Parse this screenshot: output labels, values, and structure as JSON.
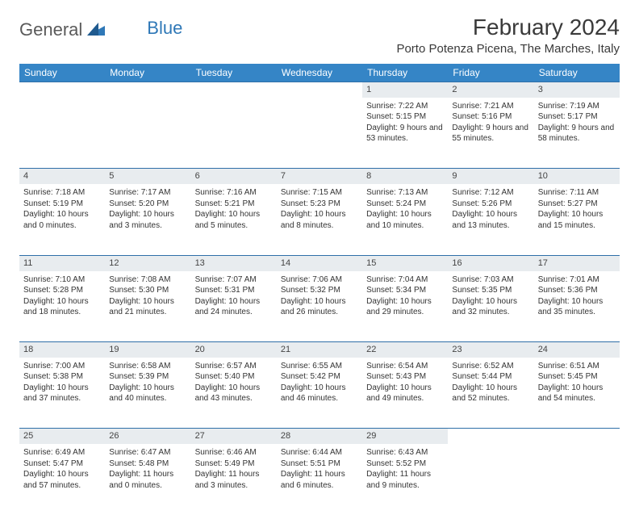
{
  "logo": {
    "text1": "General",
    "text2": "Blue"
  },
  "title": "February 2024",
  "location": "Porto Potenza Picena, The Marches, Italy",
  "day_headers": [
    "Sunday",
    "Monday",
    "Tuesday",
    "Wednesday",
    "Thursday",
    "Friday",
    "Saturday"
  ],
  "header_bg": "#3585c6",
  "header_fg": "#ffffff",
  "daynum_bg": "#e8ecef",
  "border_color": "#2f6fa8",
  "weeks": [
    {
      "days": [
        {
          "n": "",
          "sunrise": "",
          "sunset": "",
          "daylight": ""
        },
        {
          "n": "",
          "sunrise": "",
          "sunset": "",
          "daylight": ""
        },
        {
          "n": "",
          "sunrise": "",
          "sunset": "",
          "daylight": ""
        },
        {
          "n": "",
          "sunrise": "",
          "sunset": "",
          "daylight": ""
        },
        {
          "n": "1",
          "sunrise": "Sunrise: 7:22 AM",
          "sunset": "Sunset: 5:15 PM",
          "daylight": "Daylight: 9 hours and 53 minutes."
        },
        {
          "n": "2",
          "sunrise": "Sunrise: 7:21 AM",
          "sunset": "Sunset: 5:16 PM",
          "daylight": "Daylight: 9 hours and 55 minutes."
        },
        {
          "n": "3",
          "sunrise": "Sunrise: 7:19 AM",
          "sunset": "Sunset: 5:17 PM",
          "daylight": "Daylight: 9 hours and 58 minutes."
        }
      ]
    },
    {
      "days": [
        {
          "n": "4",
          "sunrise": "Sunrise: 7:18 AM",
          "sunset": "Sunset: 5:19 PM",
          "daylight": "Daylight: 10 hours and 0 minutes."
        },
        {
          "n": "5",
          "sunrise": "Sunrise: 7:17 AM",
          "sunset": "Sunset: 5:20 PM",
          "daylight": "Daylight: 10 hours and 3 minutes."
        },
        {
          "n": "6",
          "sunrise": "Sunrise: 7:16 AM",
          "sunset": "Sunset: 5:21 PM",
          "daylight": "Daylight: 10 hours and 5 minutes."
        },
        {
          "n": "7",
          "sunrise": "Sunrise: 7:15 AM",
          "sunset": "Sunset: 5:23 PM",
          "daylight": "Daylight: 10 hours and 8 minutes."
        },
        {
          "n": "8",
          "sunrise": "Sunrise: 7:13 AM",
          "sunset": "Sunset: 5:24 PM",
          "daylight": "Daylight: 10 hours and 10 minutes."
        },
        {
          "n": "9",
          "sunrise": "Sunrise: 7:12 AM",
          "sunset": "Sunset: 5:26 PM",
          "daylight": "Daylight: 10 hours and 13 minutes."
        },
        {
          "n": "10",
          "sunrise": "Sunrise: 7:11 AM",
          "sunset": "Sunset: 5:27 PM",
          "daylight": "Daylight: 10 hours and 15 minutes."
        }
      ]
    },
    {
      "days": [
        {
          "n": "11",
          "sunrise": "Sunrise: 7:10 AM",
          "sunset": "Sunset: 5:28 PM",
          "daylight": "Daylight: 10 hours and 18 minutes."
        },
        {
          "n": "12",
          "sunrise": "Sunrise: 7:08 AM",
          "sunset": "Sunset: 5:30 PM",
          "daylight": "Daylight: 10 hours and 21 minutes."
        },
        {
          "n": "13",
          "sunrise": "Sunrise: 7:07 AM",
          "sunset": "Sunset: 5:31 PM",
          "daylight": "Daylight: 10 hours and 24 minutes."
        },
        {
          "n": "14",
          "sunrise": "Sunrise: 7:06 AM",
          "sunset": "Sunset: 5:32 PM",
          "daylight": "Daylight: 10 hours and 26 minutes."
        },
        {
          "n": "15",
          "sunrise": "Sunrise: 7:04 AM",
          "sunset": "Sunset: 5:34 PM",
          "daylight": "Daylight: 10 hours and 29 minutes."
        },
        {
          "n": "16",
          "sunrise": "Sunrise: 7:03 AM",
          "sunset": "Sunset: 5:35 PM",
          "daylight": "Daylight: 10 hours and 32 minutes."
        },
        {
          "n": "17",
          "sunrise": "Sunrise: 7:01 AM",
          "sunset": "Sunset: 5:36 PM",
          "daylight": "Daylight: 10 hours and 35 minutes."
        }
      ]
    },
    {
      "days": [
        {
          "n": "18",
          "sunrise": "Sunrise: 7:00 AM",
          "sunset": "Sunset: 5:38 PM",
          "daylight": "Daylight: 10 hours and 37 minutes."
        },
        {
          "n": "19",
          "sunrise": "Sunrise: 6:58 AM",
          "sunset": "Sunset: 5:39 PM",
          "daylight": "Daylight: 10 hours and 40 minutes."
        },
        {
          "n": "20",
          "sunrise": "Sunrise: 6:57 AM",
          "sunset": "Sunset: 5:40 PM",
          "daylight": "Daylight: 10 hours and 43 minutes."
        },
        {
          "n": "21",
          "sunrise": "Sunrise: 6:55 AM",
          "sunset": "Sunset: 5:42 PM",
          "daylight": "Daylight: 10 hours and 46 minutes."
        },
        {
          "n": "22",
          "sunrise": "Sunrise: 6:54 AM",
          "sunset": "Sunset: 5:43 PM",
          "daylight": "Daylight: 10 hours and 49 minutes."
        },
        {
          "n": "23",
          "sunrise": "Sunrise: 6:52 AM",
          "sunset": "Sunset: 5:44 PM",
          "daylight": "Daylight: 10 hours and 52 minutes."
        },
        {
          "n": "24",
          "sunrise": "Sunrise: 6:51 AM",
          "sunset": "Sunset: 5:45 PM",
          "daylight": "Daylight: 10 hours and 54 minutes."
        }
      ]
    },
    {
      "days": [
        {
          "n": "25",
          "sunrise": "Sunrise: 6:49 AM",
          "sunset": "Sunset: 5:47 PM",
          "daylight": "Daylight: 10 hours and 57 minutes."
        },
        {
          "n": "26",
          "sunrise": "Sunrise: 6:47 AM",
          "sunset": "Sunset: 5:48 PM",
          "daylight": "Daylight: 11 hours and 0 minutes."
        },
        {
          "n": "27",
          "sunrise": "Sunrise: 6:46 AM",
          "sunset": "Sunset: 5:49 PM",
          "daylight": "Daylight: 11 hours and 3 minutes."
        },
        {
          "n": "28",
          "sunrise": "Sunrise: 6:44 AM",
          "sunset": "Sunset: 5:51 PM",
          "daylight": "Daylight: 11 hours and 6 minutes."
        },
        {
          "n": "29",
          "sunrise": "Sunrise: 6:43 AM",
          "sunset": "Sunset: 5:52 PM",
          "daylight": "Daylight: 11 hours and 9 minutes."
        },
        {
          "n": "",
          "sunrise": "",
          "sunset": "",
          "daylight": ""
        },
        {
          "n": "",
          "sunrise": "",
          "sunset": "",
          "daylight": ""
        }
      ]
    }
  ]
}
